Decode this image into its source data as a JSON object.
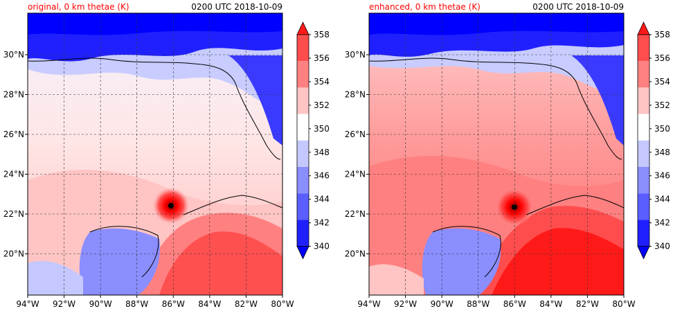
{
  "panels": [
    {
      "title_left": "original, 0 km thetae (K)",
      "title_right": "0200 UTC 2018-10-09",
      "warmth": "original"
    },
    {
      "title_left": "enhanced, 0 km thetae (K)",
      "title_right": "0200 UTC 2018-10-09",
      "warmth": "enhanced"
    }
  ],
  "lon_ticks": [
    "94°W",
    "92°W",
    "90°W",
    "88°W",
    "86°W",
    "84°W",
    "82°W",
    "80°W"
  ],
  "lat_ticks": [
    "30°N",
    "28°N",
    "26°N",
    "24°N",
    "22°N",
    "20°N"
  ],
  "colorbar": {
    "levels": [
      "358",
      "356",
      "354",
      "352",
      "350",
      "348",
      "346",
      "344",
      "342",
      "340"
    ],
    "colors": [
      "#ff1a1a",
      "#ff4d4d",
      "#ff8080",
      "#ffc4c4",
      "#ffffff",
      "#c4c8ff",
      "#8a8eff",
      "#5a5eff",
      "#2020ff",
      "#0000ff"
    ]
  },
  "colors": {
    "title_left": "#ff0000",
    "land_north": "#0a10ff",
    "storm_center": "#000000"
  }
}
